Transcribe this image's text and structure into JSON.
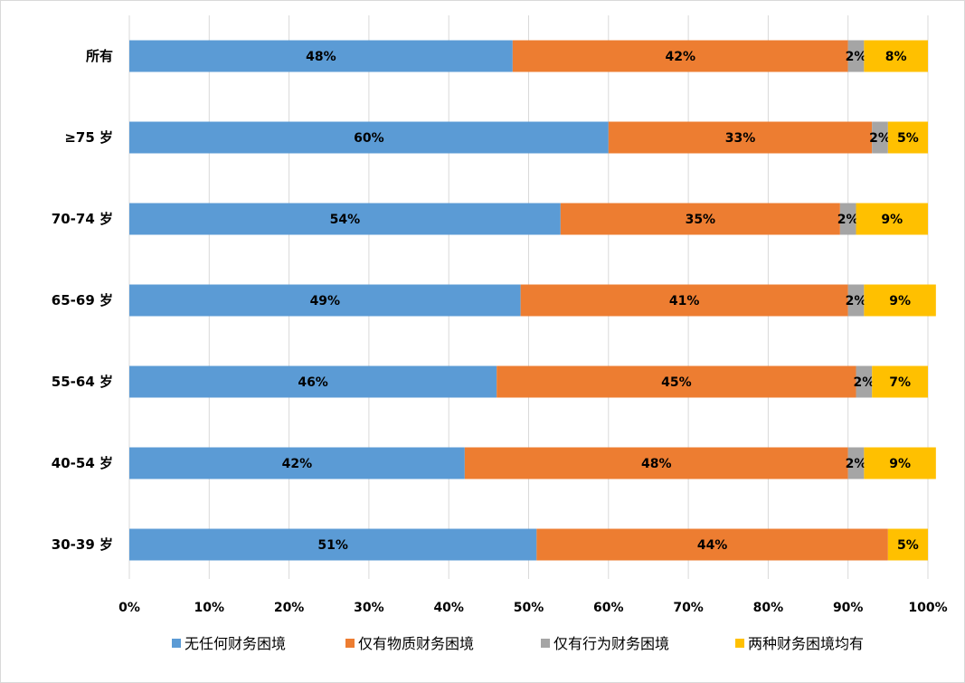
{
  "chart_data": {
    "type": "bar",
    "orientation": "horizontal",
    "stacked": "percent",
    "categories": [
      "所有",
      "≥75 岁",
      "70-74 岁",
      "65-69 岁",
      "55-64 岁",
      "40-54 岁",
      "30-39 岁"
    ],
    "series": [
      {
        "name": "无任何财务困境",
        "color": "#5b9bd5",
        "values": [
          48,
          60,
          54,
          49,
          46,
          42,
          51
        ],
        "labels": [
          "48%",
          "60%",
          "54%",
          "49%",
          "46%",
          "42%",
          "51%"
        ]
      },
      {
        "name": "仅有物质财务困境",
        "color": "#ed7d31",
        "values": [
          42,
          33,
          35,
          41,
          45,
          48,
          44
        ],
        "labels": [
          "42%",
          "33%",
          "35%",
          "41%",
          "45%",
          "48%",
          "44%"
        ]
      },
      {
        "name": "仅有行为财务困境",
        "color": "#a5a5a5",
        "values": [
          2,
          2,
          2,
          2,
          2,
          2,
          0
        ],
        "labels": [
          "2%",
          "2%",
          "2%",
          "2%",
          "2%",
          "2%",
          ""
        ]
      },
      {
        "name": "两种财务困境均有",
        "color": "#ffc000",
        "values": [
          8,
          5,
          9,
          9,
          7,
          9,
          5
        ],
        "labels": [
          "8%",
          "5%",
          "9%",
          "9%",
          "7%",
          "9%",
          "5%"
        ]
      }
    ],
    "xlim": [
      0,
      100
    ],
    "x_ticks": [
      "0%",
      "10%",
      "20%",
      "30%",
      "40%",
      "50%",
      "60%",
      "70%",
      "80%",
      "90%",
      "100%"
    ],
    "grid": "vertical",
    "legend_position": "bottom"
  }
}
